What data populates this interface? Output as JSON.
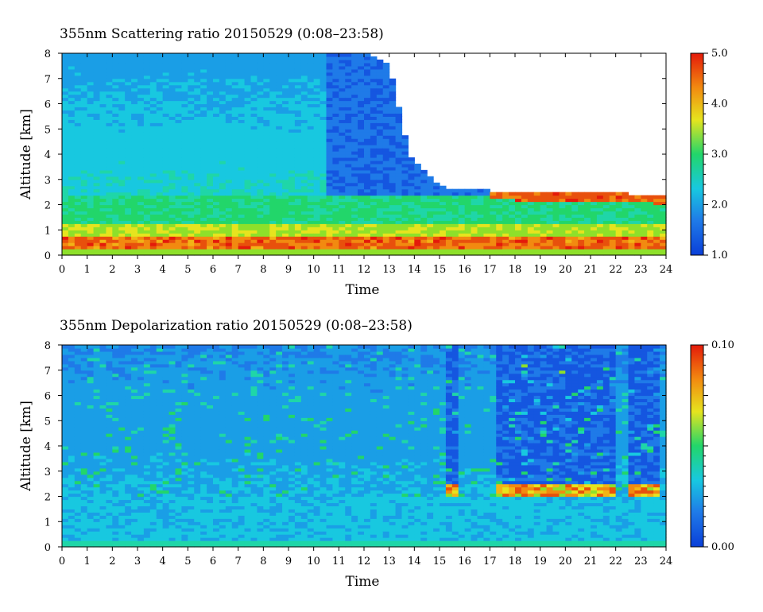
{
  "chart_data": [
    {
      "type": "heatmap",
      "title": "355nm Scattering ratio  20150529 (0:08–23:58)",
      "xlabel": "Time",
      "ylabel": "Altitude [km]",
      "xlim": [
        0,
        24
      ],
      "ylim": [
        0,
        8
      ],
      "x_ticks": [
        "0",
        "1",
        "2",
        "3",
        "4",
        "5",
        "6",
        "7",
        "8",
        "9",
        "10",
        "11",
        "12",
        "13",
        "14",
        "15",
        "16",
        "17",
        "18",
        "19",
        "20",
        "21",
        "22",
        "23",
        "24"
      ],
      "y_ticks": [
        "0",
        "1",
        "2",
        "3",
        "4",
        "5",
        "6",
        "7",
        "8"
      ],
      "colorbar": {
        "min": 1.0,
        "max": 5.0,
        "tick_labels": [
          "1.0",
          "2.0",
          "3.0",
          "4.0",
          "5.0"
        ]
      },
      "colormap": [
        "#0a3fd8",
        "#1f7ae8",
        "#18c8e0",
        "#22d66a",
        "#e6e41e",
        "#f28a10",
        "#e41a0a"
      ],
      "features": {
        "cloud_top_km": {
          "time_h": [
            0,
            10.6,
            11,
            12,
            13,
            13.8,
            15,
            15.4,
            24
          ],
          "value": [
            8,
            8,
            8,
            8,
            7.5,
            4.0,
            2.8,
            2.6,
            2.4
          ]
        },
        "aerosol_layer_top_km": 2.4,
        "strong_layer_km": [
          0.3,
          0.8
        ]
      }
    },
    {
      "type": "heatmap",
      "title": "355nm Depolarization ratio  20150529 (0:08–23:58)",
      "xlabel": "Time",
      "ylabel": "Altitude [km]",
      "xlim": [
        0,
        24
      ],
      "ylim": [
        0,
        8
      ],
      "x_ticks": [
        "0",
        "1",
        "2",
        "3",
        "4",
        "5",
        "6",
        "7",
        "8",
        "9",
        "10",
        "11",
        "12",
        "13",
        "14",
        "15",
        "16",
        "17",
        "18",
        "19",
        "20",
        "21",
        "22",
        "23",
        "24"
      ],
      "y_ticks": [
        "0",
        "1",
        "2",
        "3",
        "4",
        "5",
        "6",
        "7",
        "8"
      ],
      "colorbar": {
        "min": 0.0,
        "max": 0.1,
        "tick_labels": [
          "0.00",
          "0.10"
        ]
      },
      "colormap": [
        "#0a3fd8",
        "#1f7ae8",
        "#18c8e0",
        "#22d66a",
        "#e6e41e",
        "#f28a10",
        "#e41a0a"
      ],
      "features": {
        "cloud_base_km": 2.2,
        "cloud_intervals_h": [
          [
            15.3,
            15.7
          ],
          [
            17.2,
            22.0
          ],
          [
            22.5,
            23.8
          ]
        ]
      }
    }
  ]
}
